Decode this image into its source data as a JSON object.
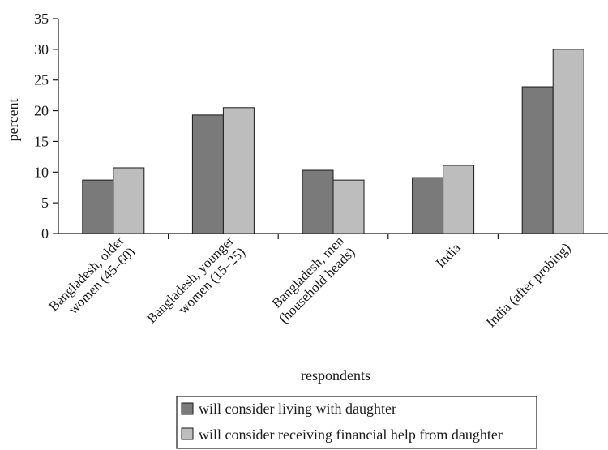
{
  "chart_data": {
    "type": "bar",
    "title": "",
    "xlabel": "respondents",
    "ylabel": "percent",
    "ylim": [
      0,
      35
    ],
    "yticks": [
      0,
      5,
      10,
      15,
      20,
      25,
      30,
      35
    ],
    "grid": false,
    "legend_position": "bottom",
    "categories": [
      [
        "Bangladesh, older",
        "women (45–60)"
      ],
      [
        "Bangladesh, younger",
        "women (15–25)"
      ],
      [
        "Bangladesh, men",
        "(household heads)"
      ],
      [
        "India"
      ],
      [
        "India (after probing)"
      ]
    ],
    "series": [
      {
        "name": "will consider living with daughter",
        "color": "#7a7a7a",
        "values": [
          8.7,
          19.3,
          10.3,
          9.1,
          23.9
        ]
      },
      {
        "name": "will consider receiving financial help from daughter",
        "color": "#bdbdbd",
        "values": [
          10.7,
          20.5,
          8.7,
          11.1,
          30.0
        ]
      }
    ]
  }
}
